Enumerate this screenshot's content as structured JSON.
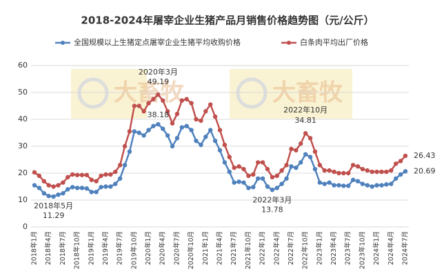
{
  "chart_data": {
    "type": "line",
    "title": "2018-2024年屠宰企业生猪产品月销售价格趋势图（元/公斤）",
    "watermark": "大畜牧",
    "categories": [
      "2018年1月",
      null,
      null,
      "2018年4月",
      null,
      null,
      "2018年7月",
      null,
      null,
      "2018年10月",
      null,
      null,
      "2019年1月",
      null,
      null,
      "2019年4月",
      null,
      null,
      "2019年7月",
      null,
      null,
      "2019年10月",
      null,
      null,
      "2020年1月",
      null,
      null,
      "2020年4月",
      null,
      null,
      "2020年7月",
      null,
      null,
      "2020年10月",
      null,
      null,
      "2021年1月",
      null,
      null,
      "2021年4月",
      null,
      null,
      "2021年7月",
      null,
      null,
      "2021年10月",
      null,
      null,
      "2022年1月",
      null,
      null,
      "2022年4月",
      null,
      null,
      "2022年7月",
      null,
      null,
      "2022年10月",
      null,
      null,
      "2023年1月",
      null,
      null,
      "2023年4月",
      null,
      null,
      "2023年7月",
      null,
      null,
      "2023年10月",
      null,
      null,
      "2024年1月",
      null,
      null,
      "2024年4月",
      null,
      null,
      "2024年7月"
    ],
    "series": [
      {
        "name": "全国规模以上生猪定点屠宰企业生猪平均收购价格",
        "color": "#4f81bd",
        "values": [
          15.5,
          14.5,
          12.5,
          11.5,
          11.29,
          12,
          12.5,
          14,
          14.8,
          14.5,
          14.5,
          14.3,
          13,
          13,
          14.8,
          15,
          15,
          16,
          18,
          23,
          28,
          35.5,
          35,
          34,
          36,
          37.5,
          38.18,
          36.5,
          34,
          30,
          33,
          37,
          37.5,
          36,
          32,
          30.5,
          33.5,
          36,
          32,
          28.5,
          24,
          20.5,
          16.5,
          16.8,
          16.5,
          14.5,
          14.8,
          18,
          18,
          15,
          13.78,
          14.5,
          16,
          18,
          22.5,
          22,
          24,
          27,
          26,
          21.5,
          16.5,
          16,
          16.5,
          15.5,
          15.5,
          15.3,
          15.3,
          17.5,
          17,
          16,
          15.5,
          15,
          15.5,
          15.5,
          15.8,
          16,
          18,
          19.5,
          20.69
        ]
      },
      {
        "name": "白条肉平均出厂价格",
        "color": "#c0504d",
        "values": [
          20.3,
          19,
          17,
          15.5,
          15,
          15.5,
          16.5,
          18.5,
          19.5,
          19.3,
          19.3,
          19.3,
          17.5,
          17,
          19,
          19.5,
          19.5,
          20.5,
          23,
          30,
          35.5,
          45,
          45,
          43,
          46,
          47.5,
          49.19,
          47,
          43,
          38.5,
          42,
          47,
          47.5,
          46,
          40,
          39.5,
          43,
          45.5,
          41,
          36,
          30.5,
          26,
          22,
          22.5,
          21.5,
          19,
          19.5,
          24,
          24,
          21.5,
          18.5,
          19,
          21,
          23,
          29,
          28.5,
          31,
          34.81,
          33,
          28,
          23,
          21,
          21,
          20.5,
          20,
          20,
          20,
          23,
          22.5,
          21.5,
          21,
          20.5,
          20.5,
          20.5,
          20.5,
          21,
          23.5,
          24.5,
          26.43
        ]
      }
    ],
    "annotations": [
      {
        "date": "2018年5月",
        "value": 11.29
      },
      {
        "date": "2020年3月",
        "value": 49.19
      },
      {
        "value": 38.18
      },
      {
        "date": "2022年3月",
        "value": 13.78
      },
      {
        "date": "2022年10月",
        "value": 34.81
      },
      {
        "value": 26.43
      },
      {
        "value": 20.69
      }
    ],
    "ylim": [
      0,
      60
    ],
    "yticks": [
      0,
      10,
      20,
      30,
      40,
      50,
      60
    ],
    "grid": true
  }
}
